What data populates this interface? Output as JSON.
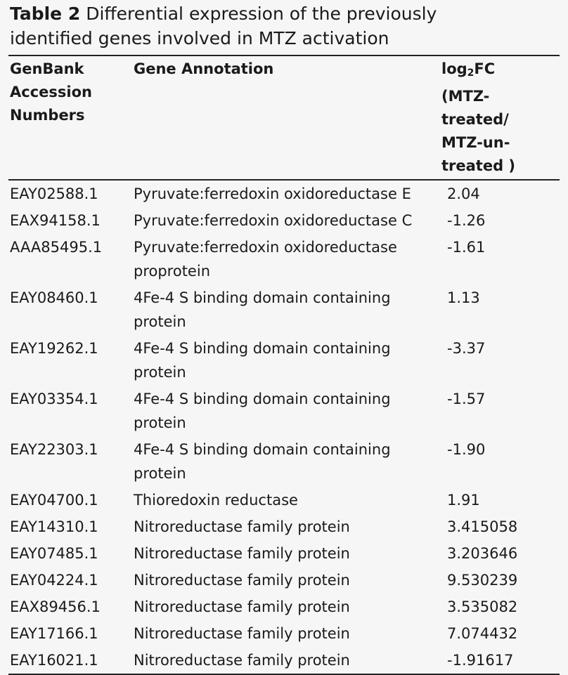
{
  "caption": {
    "label": "Table 2",
    "text": "Differential expression of the previously identified genes involved in MTZ activation"
  },
  "table": {
    "header": [
      "GenBank Accession Numbers",
      "Gene Annotation",
      {
        "before": "log",
        "subscript": "2",
        "after": "FC (MTZ-treated/ MTZ-un-treated )"
      }
    ],
    "rows": [
      [
        "EAY02588.1",
        "Pyruvate:ferredoxin oxidoreductase E",
        "2.04"
      ],
      [
        "EAX94158.1",
        "Pyruvate:ferredoxin oxidoreductase C",
        "-1.26"
      ],
      [
        "AAA85495.1",
        "Pyruvate:ferredoxin oxidoreductase proprotein",
        "-1.61"
      ],
      [
        "EAY08460.1",
        "4Fe-4 S binding domain containing protein",
        "1.13"
      ],
      [
        "EAY19262.1",
        "4Fe-4 S binding domain containing protein",
        "-3.37"
      ],
      [
        "EAY03354.1",
        "4Fe-4 S binding domain containing protein",
        "-1.57"
      ],
      [
        "EAY22303.1",
        "4Fe-4 S binding domain containing protein",
        "-1.90"
      ],
      [
        "EAY04700.1",
        "Thioredoxin reductase",
        "1.91"
      ],
      [
        "EAY14310.1",
        "Nitroreductase family protein",
        "3.415058"
      ],
      [
        "EAY07485.1",
        "Nitroreductase family protein",
        "3.203646"
      ],
      [
        "EAY04224.1",
        "Nitroreductase family protein",
        "9.530239"
      ],
      [
        "EAX89456.1",
        "Nitroreductase family protein",
        "3.535082"
      ],
      [
        "EAY17166.1",
        "Nitroreductase family protein",
        "7.074432"
      ],
      [
        "EAY16021.1",
        "Nitroreductase family protein",
        "-1.91617"
      ]
    ]
  }
}
